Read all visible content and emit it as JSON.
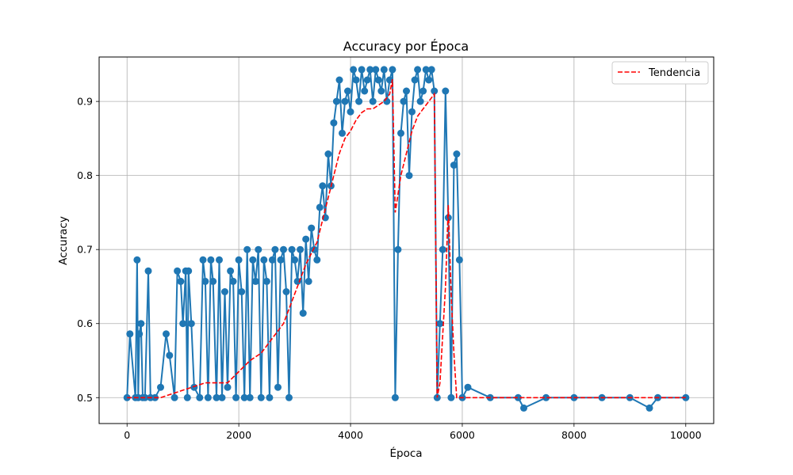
{
  "chart_data": {
    "type": "line",
    "title": "Accuracy por Época",
    "xlabel": "Época",
    "ylabel": "Accuracy",
    "xlim": [
      -500,
      10500
    ],
    "ylim": [
      0.465,
      0.96
    ],
    "x_ticks": [
      0,
      2000,
      4000,
      6000,
      8000,
      10000
    ],
    "x_tick_labels": [
      "0",
      "2000",
      "4000",
      "6000",
      "8000",
      "10000"
    ],
    "y_ticks": [
      0.5,
      0.6,
      0.7,
      0.8,
      0.9
    ],
    "y_tick_labels": [
      "0.5",
      "0.6",
      "0.7",
      "0.8",
      "0.9"
    ],
    "grid": true,
    "legend": {
      "position": "top-right",
      "entries": [
        "Tendencia"
      ]
    },
    "series": [
      {
        "style": "line-with-markers",
        "color": "#1f77b4",
        "x": [
          0,
          50,
          150,
          180,
          200,
          220,
          250,
          280,
          320,
          380,
          420,
          500,
          600,
          700,
          760,
          850,
          900,
          960,
          1000,
          1050,
          1080,
          1100,
          1150,
          1200,
          1300,
          1360,
          1400,
          1450,
          1500,
          1540,
          1600,
          1650,
          1700,
          1750,
          1800,
          1850,
          1900,
          1950,
          2000,
          2050,
          2100,
          2150,
          2200,
          2250,
          2300,
          2350,
          2400,
          2450,
          2500,
          2550,
          2600,
          2650,
          2700,
          2750,
          2800,
          2850,
          2900,
          2950,
          3000,
          3050,
          3100,
          3150,
          3200,
          3250,
          3300,
          3350,
          3400,
          3450,
          3500,
          3550,
          3600,
          3650,
          3700,
          3750,
          3800,
          3850,
          3900,
          3950,
          4000,
          4050,
          4100,
          4150,
          4200,
          4250,
          4300,
          4350,
          4400,
          4450,
          4500,
          4550,
          4600,
          4650,
          4700,
          4750,
          4800,
          4850,
          4900,
          4950,
          5000,
          5050,
          5100,
          5150,
          5200,
          5250,
          5300,
          5350,
          5400,
          5450,
          5500,
          5550,
          5600,
          5650,
          5700,
          5750,
          5800,
          5850,
          5900,
          5950,
          6000,
          6100,
          6500,
          7000,
          7100,
          7500,
          8000,
          8500,
          9000,
          9350,
          9500,
          10000
        ],
        "y": [
          0.5,
          0.586,
          0.5,
          0.686,
          0.5,
          0.586,
          0.6,
          0.5,
          0.5,
          0.671,
          0.5,
          0.5,
          0.514,
          0.586,
          0.557,
          0.5,
          0.671,
          0.657,
          0.6,
          0.671,
          0.5,
          0.671,
          0.6,
          0.514,
          0.5,
          0.686,
          0.657,
          0.5,
          0.686,
          0.657,
          0.5,
          0.686,
          0.5,
          0.643,
          0.514,
          0.671,
          0.657,
          0.5,
          0.686,
          0.643,
          0.5,
          0.7,
          0.5,
          0.686,
          0.657,
          0.7,
          0.5,
          0.686,
          0.657,
          0.5,
          0.686,
          0.7,
          0.514,
          0.686,
          0.7,
          0.643,
          0.5,
          0.7,
          0.686,
          0.657,
          0.7,
          0.614,
          0.714,
          0.657,
          0.729,
          0.7,
          0.686,
          0.757,
          0.786,
          0.743,
          0.829,
          0.786,
          0.871,
          0.9,
          0.929,
          0.857,
          0.9,
          0.914,
          0.886,
          0.943,
          0.929,
          0.9,
          0.943,
          0.914,
          0.929,
          0.943,
          0.9,
          0.943,
          0.929,
          0.914,
          0.943,
          0.9,
          0.929,
          0.943,
          0.5,
          0.7,
          0.857,
          0.9,
          0.914,
          0.8,
          0.886,
          0.929,
          0.943,
          0.9,
          0.914,
          0.943,
          0.929,
          0.943,
          0.914,
          0.5,
          0.6,
          0.7,
          0.914,
          0.743,
          0.5,
          0.814,
          0.829,
          0.686,
          0.5,
          0.514,
          0.5,
          0.5,
          0.486,
          0.5,
          0.5,
          0.5,
          0.5,
          0.486,
          0.5,
          0.5
        ]
      },
      {
        "name": "Tendencia",
        "style": "dashed",
        "color": "#ff0000",
        "x": [
          0,
          200,
          400,
          600,
          800,
          1000,
          1200,
          1400,
          1600,
          1800,
          2000,
          2200,
          2400,
          2600,
          2800,
          3000,
          3200,
          3400,
          3500,
          3600,
          3700,
          3800,
          3900,
          4000,
          4100,
          4200,
          4300,
          4400,
          4500,
          4600,
          4700,
          4750,
          4800,
          4900,
          5000,
          5100,
          5200,
          5300,
          5400,
          5500,
          5550,
          5600,
          5700,
          5750,
          5800,
          5850,
          5900,
          6000,
          7000,
          8000,
          9000,
          10000
        ],
        "y": [
          0.5,
          0.5,
          0.5,
          0.5,
          0.505,
          0.51,
          0.515,
          0.52,
          0.52,
          0.52,
          0.535,
          0.55,
          0.56,
          0.58,
          0.6,
          0.64,
          0.68,
          0.71,
          0.74,
          0.77,
          0.8,
          0.83,
          0.85,
          0.86,
          0.875,
          0.885,
          0.89,
          0.89,
          0.895,
          0.9,
          0.91,
          0.93,
          0.75,
          0.8,
          0.83,
          0.86,
          0.88,
          0.89,
          0.9,
          0.91,
          0.5,
          0.52,
          0.65,
          0.76,
          0.64,
          0.56,
          0.5,
          0.5,
          0.5,
          0.5,
          0.5,
          0.5
        ]
      }
    ]
  }
}
